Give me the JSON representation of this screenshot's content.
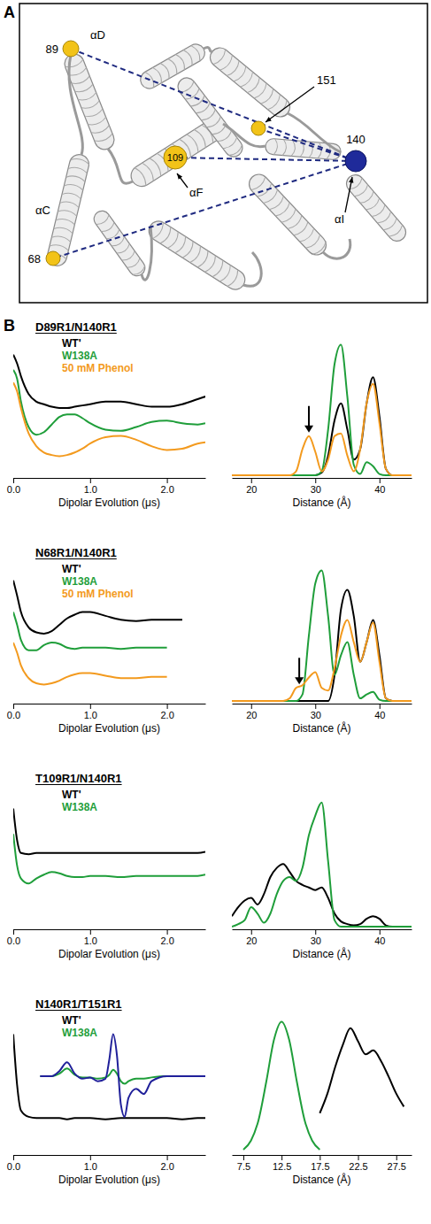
{
  "panel_a": {
    "letter": "A",
    "residues": [
      {
        "label": "89"
      },
      {
        "label": "68"
      },
      {
        "label": "109"
      },
      {
        "label": "151"
      },
      {
        "label": "140"
      }
    ],
    "helices": [
      "αD",
      "αC",
      "αF",
      "αI"
    ]
  },
  "panel_b": {
    "letter": "B"
  },
  "chart_data": [
    {
      "type": "line",
      "title": "D89R1/N140R1",
      "x_label": "Dipolar Evolution (μs)",
      "x": [
        0,
        0.05,
        0.1,
        0.2,
        0.3,
        0.4,
        0.5,
        0.6,
        0.7,
        0.8,
        0.9,
        1.0,
        1.2,
        1.4,
        1.6,
        1.8,
        2.0,
        2.2,
        2.4,
        2.5
      ],
      "series": [
        {
          "name": "WT'",
          "color": "#000000",
          "values": [
            0.97,
            0.9,
            0.8,
            0.66,
            0.6,
            0.58,
            0.56,
            0.55,
            0.55,
            0.56,
            0.57,
            0.58,
            0.6,
            0.6,
            0.58,
            0.56,
            0.56,
            0.58,
            0.62,
            0.64
          ]
        },
        {
          "name": "W138A",
          "color": "#1f9e3a",
          "values": [
            0.85,
            0.78,
            0.6,
            0.4,
            0.34,
            0.36,
            0.42,
            0.48,
            0.5,
            0.5,
            0.47,
            0.43,
            0.38,
            0.37,
            0.4,
            0.44,
            0.45,
            0.43,
            0.42,
            0.43
          ]
        },
        {
          "name": "50 mM Phenol",
          "color": "#f39a1e",
          "values": [
            0.75,
            0.68,
            0.55,
            0.35,
            0.25,
            0.2,
            0.18,
            0.17,
            0.18,
            0.2,
            0.23,
            0.27,
            0.32,
            0.33,
            0.3,
            0.25,
            0.22,
            0.23,
            0.27,
            0.28
          ]
        }
      ],
      "xlim": [
        0,
        2.5
      ],
      "xticks": [
        {
          "value": 0,
          "label": "0.0"
        },
        {
          "value": 1,
          "label": "1.0"
        },
        {
          "value": 2,
          "label": "2.0"
        }
      ],
      "ylim": [
        0,
        1.1
      ],
      "legend": "top-left",
      "tick_labels": "x"
    },
    {
      "type": "line",
      "x_label": "Distance (Å)",
      "x": [
        17,
        18,
        19,
        20,
        21,
        22,
        23,
        24,
        25,
        26,
        27,
        28,
        29,
        30,
        31,
        32,
        33,
        34,
        35,
        36,
        37,
        38,
        39,
        40,
        41,
        42,
        43,
        44,
        45
      ],
      "series": [
        {
          "color": "#000000",
          "values": [
            0,
            0,
            0,
            0,
            0,
            0,
            0,
            0,
            0,
            0,
            0,
            0,
            0,
            0,
            0.02,
            0.15,
            0.42,
            0.55,
            0.35,
            0.12,
            0.2,
            0.55,
            0.75,
            0.45,
            0.05,
            0,
            0,
            0,
            0
          ]
        },
        {
          "color": "#1f9e3a",
          "values": [
            0,
            0,
            0,
            0,
            0,
            0,
            0,
            0,
            0,
            0,
            0,
            0,
            0,
            0,
            0.03,
            0.35,
            0.85,
            1.0,
            0.6,
            0.08,
            0.01,
            0.1,
            0.07,
            0.01,
            0,
            0,
            0,
            0,
            0
          ]
        },
        {
          "color": "#f39a1e",
          "values": [
            0,
            0,
            0,
            0,
            0,
            0,
            0,
            0,
            0,
            0,
            0.03,
            0.2,
            0.3,
            0.18,
            0.03,
            0.12,
            0.3,
            0.32,
            0.15,
            0.03,
            0.2,
            0.55,
            0.7,
            0.4,
            0.05,
            0,
            0,
            0,
            0
          ]
        }
      ],
      "xlim": [
        17,
        45
      ],
      "xticks": [
        20,
        30,
        40
      ],
      "ylim": [
        -0.02,
        1.05
      ],
      "tick_labels": "x",
      "annotations": [
        {
          "type": "arrow",
          "x": 29
        }
      ]
    },
    {
      "type": "line",
      "title": "N68R1/N140R1",
      "x_label": "Dipolar Evolution (μs)",
      "x": [
        0,
        0.05,
        0.1,
        0.2,
        0.3,
        0.4,
        0.5,
        0.6,
        0.7,
        0.8,
        0.9,
        1.0,
        1.2,
        1.4,
        1.6,
        1.8,
        2.0,
        2.2,
        2.4,
        2.5
      ],
      "series": [
        {
          "name": "WT'",
          "color": "#000000",
          "values": [
            0.97,
            0.85,
            0.72,
            0.6,
            0.56,
            0.55,
            0.57,
            0.62,
            0.67,
            0.7,
            0.72,
            0.72,
            0.69,
            0.66,
            0.65,
            0.66,
            0.66,
            0.66,
            null,
            null
          ]
        },
        {
          "name": "W138A",
          "color": "#1f9e3a",
          "values": [
            0.72,
            0.62,
            0.5,
            0.42,
            0.42,
            0.46,
            0.48,
            0.47,
            0.44,
            0.43,
            0.44,
            0.44,
            0.44,
            0.43,
            0.44,
            0.44,
            0.44,
            null,
            null,
            null
          ]
        },
        {
          "name": "50 mM Phenol",
          "color": "#f39a1e",
          "values": [
            0.48,
            0.4,
            0.3,
            0.2,
            0.16,
            0.15,
            0.16,
            0.18,
            0.21,
            0.23,
            0.24,
            0.24,
            0.22,
            0.2,
            0.2,
            0.21,
            0.21,
            null,
            null,
            null
          ]
        }
      ],
      "xlim": [
        0,
        2.5
      ],
      "xticks": [
        {
          "value": 0,
          "label": "0.0"
        },
        {
          "value": 1,
          "label": "1.0"
        },
        {
          "value": 2,
          "label": "2.0"
        }
      ],
      "ylim": [
        0,
        1.1
      ],
      "legend": "top-left",
      "tick_labels": "x"
    },
    {
      "type": "line",
      "x_label": "Distance (Å)",
      "x": [
        17,
        18,
        19,
        20,
        21,
        22,
        23,
        24,
        25,
        26,
        27,
        28,
        29,
        30,
        31,
        32,
        33,
        34,
        35,
        36,
        37,
        38,
        39,
        40,
        41,
        42,
        43,
        44,
        45
      ],
      "series": [
        {
          "color": "#000000",
          "values": [
            0,
            0,
            0,
            0,
            0,
            0,
            0,
            0,
            0,
            0,
            0,
            0,
            0,
            0,
            0,
            0,
            0.2,
            0.7,
            0.85,
            0.65,
            0.3,
            0.45,
            0.62,
            0.35,
            0.02,
            0,
            0,
            0,
            0
          ]
        },
        {
          "color": "#1f9e3a",
          "values": [
            0,
            0,
            0,
            0,
            0,
            0,
            0,
            0,
            0,
            0,
            0,
            0.05,
            0.5,
            0.9,
            1.0,
            0.65,
            0.2,
            0.35,
            0.45,
            0.2,
            0.02,
            0.05,
            0.07,
            0.01,
            0,
            0,
            0,
            0,
            0
          ]
        },
        {
          "color": "#f39a1e",
          "values": [
            0,
            0,
            0,
            0,
            0,
            0,
            0,
            0,
            0,
            0.02,
            0.1,
            0.12,
            0.18,
            0.22,
            0.1,
            0.08,
            0.25,
            0.5,
            0.62,
            0.45,
            0.3,
            0.45,
            0.6,
            0.3,
            0.02,
            0,
            0,
            0,
            0
          ]
        }
      ],
      "xlim": [
        17,
        45
      ],
      "xticks": [
        20,
        30,
        40
      ],
      "ylim": [
        -0.02,
        1.05
      ],
      "tick_labels": "x",
      "annotations": [
        {
          "type": "arrow",
          "x": 27.5
        }
      ]
    },
    {
      "type": "line",
      "title": "T109R1/N140R1",
      "x_label": "Dipolar Evolution (μs)",
      "x": [
        0,
        0.05,
        0.1,
        0.2,
        0.3,
        0.4,
        0.5,
        0.6,
        0.7,
        0.8,
        0.9,
        1.0,
        1.2,
        1.4,
        1.6,
        1.8,
        2.0,
        2.2,
        2.4,
        2.5
      ],
      "series": [
        {
          "name": "WT'",
          "color": "#000000",
          "values": [
            0.95,
            0.7,
            0.6,
            0.59,
            0.6,
            0.6,
            0.6,
            0.6,
            0.6,
            0.6,
            0.6,
            0.6,
            0.6,
            0.6,
            0.6,
            0.6,
            0.6,
            0.6,
            0.6,
            0.61
          ]
        },
        {
          "name": "W138A",
          "color": "#1f9e3a",
          "values": [
            0.75,
            0.5,
            0.4,
            0.36,
            0.4,
            0.43,
            0.45,
            0.44,
            0.42,
            0.41,
            0.41,
            0.42,
            0.42,
            0.41,
            0.42,
            0.42,
            0.42,
            0.42,
            0.42,
            0.43
          ]
        }
      ],
      "xlim": [
        0,
        2.5
      ],
      "xticks": [
        {
          "value": 0,
          "label": "0.0"
        },
        {
          "value": 1,
          "label": "1.0"
        },
        {
          "value": 2,
          "label": "2.0"
        }
      ],
      "ylim": [
        0,
        1.1
      ],
      "legend": "top-left",
      "tick_labels": "x"
    },
    {
      "type": "line",
      "x_label": "Distance (Å)",
      "x": [
        17,
        18,
        19,
        20,
        21,
        22,
        23,
        24,
        25,
        26,
        27,
        28,
        29,
        30,
        31,
        32,
        33,
        34,
        35,
        36,
        37,
        38,
        39,
        40,
        41,
        42,
        43,
        44,
        45
      ],
      "series": [
        {
          "color": "#000000",
          "values": [
            0.08,
            0.15,
            0.2,
            0.22,
            0.17,
            0.25,
            0.38,
            0.45,
            0.48,
            0.42,
            0.35,
            0.32,
            0.3,
            0.28,
            0.3,
            0.22,
            0.1,
            0.04,
            0.02,
            0.01,
            0.02,
            0.06,
            0.08,
            0.06,
            0.01,
            0,
            0,
            0,
            0
          ]
        },
        {
          "color": "#1f9e3a",
          "values": [
            0,
            0.02,
            0.05,
            0.15,
            0.1,
            0.03,
            0.1,
            0.25,
            0.35,
            0.38,
            0.35,
            0.45,
            0.7,
            0.85,
            0.95,
            0.5,
            0.05,
            0,
            0,
            0,
            0,
            0,
            0,
            0,
            0,
            0,
            0,
            0,
            0
          ]
        }
      ],
      "xlim": [
        17,
        45
      ],
      "xticks": [
        20,
        30,
        40
      ],
      "ylim": [
        -0.02,
        1.05
      ],
      "tick_labels": "x"
    },
    {
      "type": "line",
      "title": "N140R1/T151R1",
      "x_label": "Dipolar Evolution (μs)",
      "x": [
        0,
        0.05,
        0.1,
        0.2,
        0.3,
        0.4,
        0.5,
        0.6,
        0.7,
        0.8,
        0.9,
        1.0,
        1.2,
        1.4,
        1.6,
        1.8,
        2.0,
        2.2,
        2.4,
        2.5
      ],
      "series": [
        {
          "name": "WT'",
          "color": "#000000",
          "values": [
            0.95,
            0.55,
            0.35,
            0.3,
            0.29,
            0.29,
            0.29,
            0.29,
            0.28,
            0.29,
            0.29,
            0.29,
            0.28,
            0.29,
            0.29,
            0.29,
            0.29,
            0.28,
            0.29,
            0.29
          ]
        },
        {
          "name": "W138A",
          "color": "#1f9e3a",
          "x": [
            0.35,
            0.5,
            0.6,
            0.7,
            0.8,
            0.9,
            1.0,
            1.1,
            1.2,
            1.25,
            1.3,
            1.35,
            1.4,
            1.45,
            1.5,
            1.6,
            1.7,
            1.8,
            2.0,
            2.2,
            2.5
          ],
          "values": [
            0.62,
            0.62,
            0.64,
            0.68,
            0.63,
            0.61,
            0.61,
            0.6,
            0.61,
            0.63,
            0.67,
            0.64,
            0.58,
            0.56,
            0.58,
            0.6,
            0.6,
            0.61,
            0.62,
            0.62,
            0.62
          ]
        },
        {
          "color": "#20209a",
          "x": [
            0.35,
            0.5,
            0.6,
            0.7,
            0.8,
            0.9,
            1.0,
            1.1,
            1.2,
            1.25,
            1.3,
            1.35,
            1.4,
            1.45,
            1.5,
            1.6,
            1.7,
            1.8,
            2.0,
            2.2,
            2.5
          ],
          "values": [
            0.62,
            0.62,
            0.66,
            0.73,
            0.64,
            0.6,
            0.61,
            0.58,
            0.6,
            0.75,
            0.95,
            0.78,
            0.4,
            0.3,
            0.45,
            0.52,
            0.48,
            0.58,
            0.62,
            0.62,
            0.62
          ]
        }
      ],
      "xlim": [
        0,
        2.5
      ],
      "xticks": [
        {
          "value": 0,
          "label": "0.0"
        },
        {
          "value": 1,
          "label": "1.0"
        },
        {
          "value": 2,
          "label": "2.0"
        }
      ],
      "ylim": [
        0,
        1.1
      ],
      "legend": "top-left",
      "tick_labels": "x"
    },
    {
      "type": "line",
      "x_label": "Distance (Å)",
      "series": [
        {
          "color": "#1f9e3a",
          "x": [
            7.5,
            8.5,
            9.5,
            10.5,
            11.5,
            12.5,
            13.5,
            14.5,
            15.5,
            16.5,
            17.5
          ],
          "values": [
            0.02,
            0.09,
            0.25,
            0.54,
            0.86,
            1.0,
            0.86,
            0.54,
            0.25,
            0.09,
            0.02
          ]
        },
        {
          "color": "#000000",
          "x": [
            17.5,
            18.5,
            19.5,
            20.5,
            21.5,
            22.5,
            23.5,
            24.5,
            25.5,
            26.5,
            27.5,
            28.5
          ],
          "values": [
            0.3,
            0.45,
            0.65,
            0.82,
            0.95,
            0.85,
            0.75,
            0.78,
            0.7,
            0.58,
            0.45,
            0.35
          ]
        }
      ],
      "xlim": [
        6,
        29.5
      ],
      "xticks": [
        7.5,
        12.5,
        17.5,
        22.5,
        27.5
      ],
      "ylim": [
        -0.02,
        1.05
      ],
      "tick_labels": "x"
    }
  ]
}
